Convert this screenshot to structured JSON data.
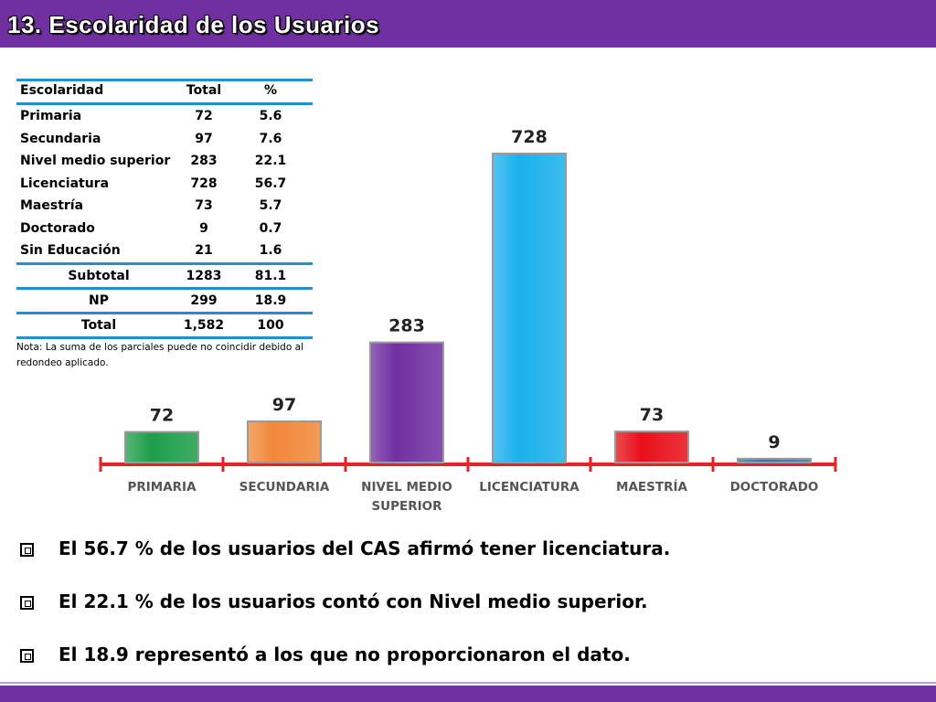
{
  "header": {
    "title": "13. Escolaridad de los Usuarios"
  },
  "table": {
    "headers": [
      "Escolaridad",
      "Total",
      "%"
    ],
    "rows": [
      [
        "Primaria",
        "72",
        "5.6"
      ],
      [
        "Secundaria",
        "97",
        "7.6"
      ],
      [
        "Nivel medio superior",
        "283",
        "22.1"
      ],
      [
        "Licenciatura",
        "728",
        "56.7"
      ],
      [
        "Maestría",
        "73",
        "5.7"
      ],
      [
        "Doctorado",
        "9",
        "0.7"
      ],
      [
        "Sin Educación",
        "21",
        "1.6"
      ]
    ],
    "subtotal": [
      "Subtotal",
      "1283",
      "81.1"
    ],
    "np": [
      "NP",
      "299",
      "18.9"
    ],
    "total": [
      "Total",
      "1,582",
      "100"
    ],
    "note": "Nota: La suma de los parciales puede no coincidir debido al redondeo aplicado."
  },
  "chart_data": {
    "type": "bar",
    "categories": [
      "PRIMARIA",
      "SECUNDARIA",
      "NIVEL MEDIO SUPERIOR",
      "LICENCIATURA",
      "MAESTRÍA",
      "DOCTORADO"
    ],
    "category_lines": [
      [
        "PRIMARIA"
      ],
      [
        "SECUNDARIA"
      ],
      [
        "NIVEL MEDIO",
        "SUPERIOR"
      ],
      [
        "LICENCIATURA"
      ],
      [
        "MAESTRÍA"
      ],
      [
        "DOCTORADO"
      ]
    ],
    "values": [
      72,
      97,
      283,
      728,
      73,
      9
    ],
    "colors": [
      "#1e9e4a",
      "#f0883a",
      "#7030a0",
      "#1ab0ec",
      "#e8101a",
      "#3f6fa8"
    ],
    "axis_color": "#e8202a",
    "ylim": [
      0,
      728
    ],
    "title": "",
    "xlabel": "",
    "ylabel": ""
  },
  "bullets": [
    "El 56.7 % de los usuarios del CAS afirmó tener licenciatura.",
    "El 22.1 % de los usuarios contó con Nivel medio superior.",
    "El 18.9 representó a los que no proporcionaron el dato."
  ]
}
